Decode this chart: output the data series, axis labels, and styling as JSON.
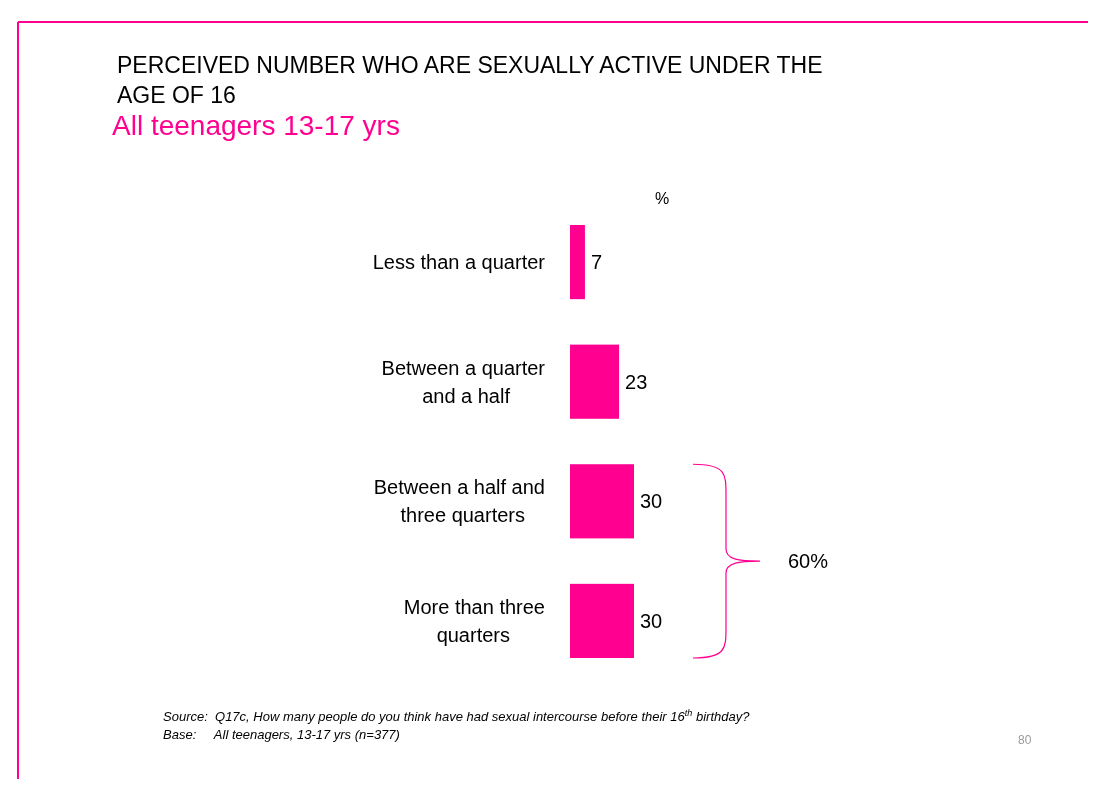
{
  "chart_data": {
    "type": "bar",
    "orientation": "horizontal",
    "title": "PERCEIVED NUMBER WHO ARE SEXUALLY ACTIVE UNDER THE AGE OF 16",
    "subtitle": "All teenagers 13-17 yrs",
    "xlabel": "%",
    "categories": [
      "Less than a quarter",
      "Between a quarter and a half",
      "Between a half and three quarters",
      "More than three quarters"
    ],
    "values": [
      7,
      23,
      30,
      30
    ],
    "color": "#ff0090",
    "data_labels": true,
    "annotations": [
      "60%",
      "Source:  Q17c, How many people do you think have had sexual intercourse before their 16$^{th}$ birthday?",
      "Base:     All teenagers, 13-17 yrs (n=377)",
      "80"
    ]
  }
}
